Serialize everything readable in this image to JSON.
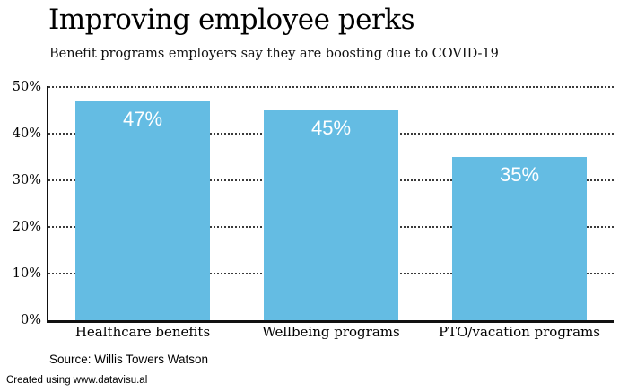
{
  "header": {
    "title": "Improving employee perks",
    "subtitle": "Benefit programs employers say they are boosting due to COVID-19"
  },
  "chart_data": {
    "type": "bar",
    "title": "Improving employee perks",
    "subtitle": "Benefit programs employers say they are boosting due to COVID-19",
    "categories": [
      "Healthcare benefits",
      "Wellbeing programs",
      "PTO/vacation programs"
    ],
    "values": [
      47,
      45,
      35
    ],
    "value_labels": [
      "47%",
      "45%",
      "35%"
    ],
    "xlabel": "",
    "ylabel": "",
    "ylim": [
      0,
      50
    ],
    "yticks": [
      0,
      10,
      20,
      30,
      40,
      50
    ],
    "ytick_labels": [
      "0%",
      "10%",
      "20%",
      "30%",
      "40%",
      "50%"
    ],
    "grid": "horizontal-dotted",
    "legend": "none",
    "bar_color": "#64bce3",
    "value_label_color": "#ffffff",
    "axis_color": "#111111"
  },
  "source": {
    "text": "Source: Willis Towers Watson"
  },
  "footer": {
    "text": "Created using www.datavisu.al"
  }
}
